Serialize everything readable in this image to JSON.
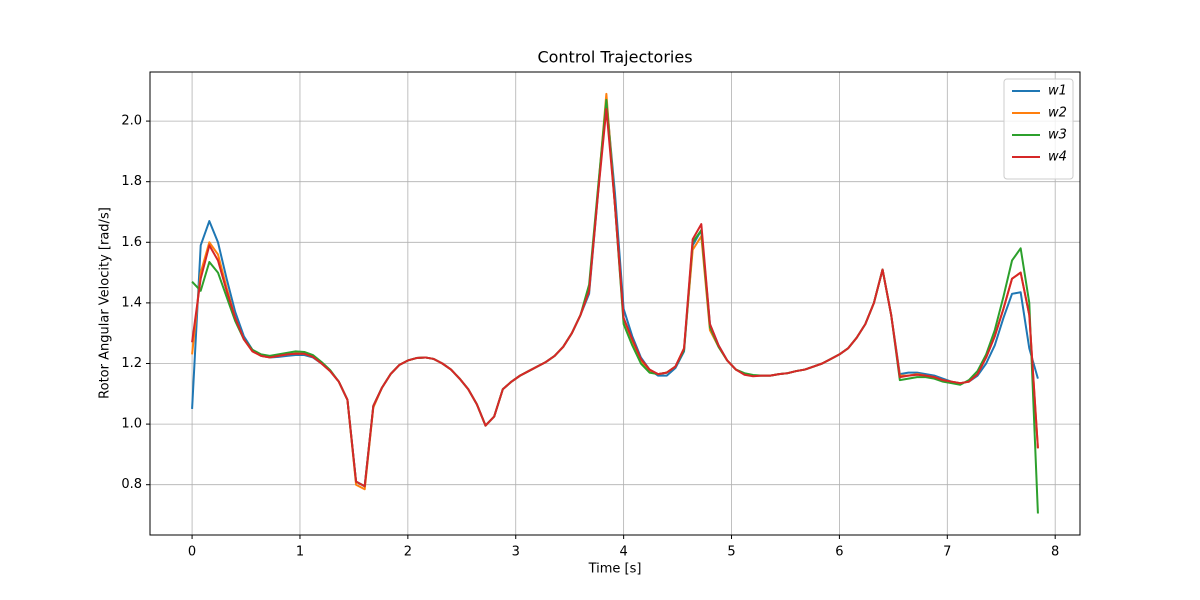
{
  "chart_data": {
    "type": "line",
    "title": "Control Trajectories",
    "xlabel": "Time [s]",
    "ylabel": "Rotor Angular Velocity [rad/s]",
    "x": [
      0,
      0.08,
      0.16,
      0.24,
      0.32,
      0.4,
      0.48,
      0.56,
      0.64,
      0.72,
      0.8,
      0.88,
      0.96,
      1.04,
      1.12,
      1.2,
      1.28,
      1.36,
      1.44,
      1.52,
      1.6,
      1.68,
      1.76,
      1.84,
      1.92,
      2.0,
      2.08,
      2.16,
      2.24,
      2.32,
      2.4,
      2.48,
      2.56,
      2.64,
      2.72,
      2.8,
      2.88,
      2.96,
      3.04,
      3.12,
      3.2,
      3.28,
      3.36,
      3.44,
      3.52,
      3.6,
      3.68,
      3.76,
      3.84,
      3.92,
      4.0,
      4.08,
      4.16,
      4.24,
      4.32,
      4.4,
      4.48,
      4.56,
      4.64,
      4.72,
      4.8,
      4.88,
      4.96,
      5.04,
      5.12,
      5.2,
      5.28,
      5.36,
      5.44,
      5.52,
      5.6,
      5.68,
      5.76,
      5.84,
      5.92,
      6.0,
      6.08,
      6.16,
      6.24,
      6.32,
      6.4,
      6.48,
      6.56,
      6.64,
      6.72,
      6.8,
      6.88,
      6.96,
      7.04,
      7.12,
      7.2,
      7.28,
      7.36,
      7.44,
      7.52,
      7.6,
      7.68,
      7.76,
      7.84
    ],
    "series": [
      {
        "name": "w1",
        "color": "#1f77b4",
        "values": [
          1.05,
          1.59,
          1.67,
          1.6,
          1.48,
          1.37,
          1.29,
          1.245,
          1.225,
          1.22,
          1.222,
          1.225,
          1.228,
          1.228,
          1.22,
          1.2,
          1.175,
          1.14,
          1.08,
          0.81,
          0.795,
          1.06,
          1.12,
          1.165,
          1.195,
          1.21,
          1.218,
          1.22,
          1.215,
          1.2,
          1.18,
          1.15,
          1.115,
          1.065,
          0.995,
          1.025,
          1.115,
          1.14,
          1.16,
          1.175,
          1.19,
          1.205,
          1.225,
          1.255,
          1.3,
          1.36,
          1.43,
          1.75,
          2.07,
          1.76,
          1.38,
          1.29,
          1.22,
          1.18,
          1.16,
          1.16,
          1.185,
          1.24,
          1.59,
          1.64,
          1.33,
          1.26,
          1.21,
          1.18,
          1.165,
          1.16,
          1.16,
          1.16,
          1.165,
          1.168,
          1.175,
          1.18,
          1.19,
          1.2,
          1.215,
          1.23,
          1.25,
          1.285,
          1.33,
          1.4,
          1.51,
          1.36,
          1.165,
          1.17,
          1.17,
          1.165,
          1.16,
          1.15,
          1.14,
          1.135,
          1.14,
          1.16,
          1.2,
          1.26,
          1.35,
          1.43,
          1.435,
          1.25,
          1.15
        ]
      },
      {
        "name": "w2",
        "color": "#ff7f0e",
        "values": [
          1.23,
          1.5,
          1.6,
          1.56,
          1.45,
          1.35,
          1.28,
          1.24,
          1.225,
          1.22,
          1.225,
          1.23,
          1.233,
          1.232,
          1.222,
          1.2,
          1.175,
          1.14,
          1.08,
          0.8,
          0.785,
          1.055,
          1.12,
          1.165,
          1.195,
          1.21,
          1.218,
          1.22,
          1.215,
          1.2,
          1.18,
          1.15,
          1.115,
          1.065,
          0.995,
          1.025,
          1.115,
          1.14,
          1.16,
          1.175,
          1.19,
          1.205,
          1.225,
          1.255,
          1.3,
          1.36,
          1.44,
          1.76,
          2.09,
          1.72,
          1.34,
          1.27,
          1.21,
          1.175,
          1.165,
          1.17,
          1.19,
          1.25,
          1.575,
          1.62,
          1.31,
          1.255,
          1.21,
          1.18,
          1.165,
          1.16,
          1.16,
          1.16,
          1.165,
          1.168,
          1.175,
          1.18,
          1.19,
          1.2,
          1.215,
          1.23,
          1.25,
          1.285,
          1.33,
          1.4,
          1.51,
          1.36,
          1.16,
          1.16,
          1.165,
          1.16,
          1.155,
          1.145,
          1.14,
          1.135,
          1.14,
          1.165,
          1.22,
          1.29,
          1.38,
          1.48,
          1.5,
          1.36,
          0.92
        ]
      },
      {
        "name": "w3",
        "color": "#2ca02c",
        "values": [
          1.47,
          1.44,
          1.535,
          1.5,
          1.42,
          1.34,
          1.28,
          1.245,
          1.23,
          1.225,
          1.23,
          1.235,
          1.24,
          1.238,
          1.228,
          1.205,
          1.178,
          1.14,
          1.08,
          0.81,
          0.795,
          1.06,
          1.12,
          1.165,
          1.195,
          1.21,
          1.218,
          1.22,
          1.215,
          1.2,
          1.18,
          1.15,
          1.115,
          1.065,
          0.995,
          1.025,
          1.115,
          1.14,
          1.16,
          1.175,
          1.19,
          1.205,
          1.225,
          1.255,
          1.3,
          1.36,
          1.46,
          1.77,
          2.07,
          1.72,
          1.33,
          1.26,
          1.2,
          1.17,
          1.165,
          1.17,
          1.19,
          1.245,
          1.6,
          1.64,
          1.32,
          1.255,
          1.21,
          1.18,
          1.168,
          1.162,
          1.16,
          1.16,
          1.165,
          1.168,
          1.175,
          1.18,
          1.19,
          1.2,
          1.215,
          1.23,
          1.25,
          1.285,
          1.33,
          1.4,
          1.51,
          1.36,
          1.145,
          1.15,
          1.155,
          1.155,
          1.15,
          1.14,
          1.135,
          1.13,
          1.145,
          1.175,
          1.23,
          1.31,
          1.42,
          1.54,
          1.58,
          1.4,
          0.705
        ]
      },
      {
        "name": "w4",
        "color": "#d62728",
        "values": [
          1.27,
          1.48,
          1.59,
          1.54,
          1.44,
          1.35,
          1.28,
          1.24,
          1.225,
          1.22,
          1.225,
          1.23,
          1.232,
          1.232,
          1.222,
          1.2,
          1.175,
          1.14,
          1.08,
          0.81,
          0.795,
          1.06,
          1.12,
          1.165,
          1.195,
          1.21,
          1.218,
          1.22,
          1.215,
          1.2,
          1.18,
          1.15,
          1.115,
          1.065,
          0.995,
          1.025,
          1.115,
          1.14,
          1.16,
          1.175,
          1.19,
          1.205,
          1.225,
          1.255,
          1.3,
          1.36,
          1.44,
          1.75,
          2.04,
          1.72,
          1.35,
          1.28,
          1.215,
          1.18,
          1.165,
          1.17,
          1.19,
          1.25,
          1.61,
          1.66,
          1.33,
          1.26,
          1.21,
          1.18,
          1.163,
          1.158,
          1.16,
          1.16,
          1.165,
          1.168,
          1.175,
          1.18,
          1.19,
          1.2,
          1.215,
          1.23,
          1.25,
          1.285,
          1.33,
          1.4,
          1.51,
          1.36,
          1.155,
          1.16,
          1.163,
          1.16,
          1.155,
          1.145,
          1.14,
          1.135,
          1.14,
          1.165,
          1.22,
          1.29,
          1.38,
          1.48,
          1.5,
          1.36,
          0.92
        ]
      }
    ],
    "xlim": [
      -0.39,
      8.23
    ],
    "ylim": [
      0.634,
      2.162
    ],
    "xticks": [
      0,
      1,
      2,
      3,
      4,
      5,
      6,
      7,
      8
    ],
    "yticks": [
      0.8,
      {
        "value": 1.0,
        "label": "1.0"
      },
      1.2,
      1.4,
      1.6,
      1.8,
      {
        "value": 2.0,
        "label": "2.0"
      }
    ],
    "grid": true,
    "legend": "upper right"
  }
}
